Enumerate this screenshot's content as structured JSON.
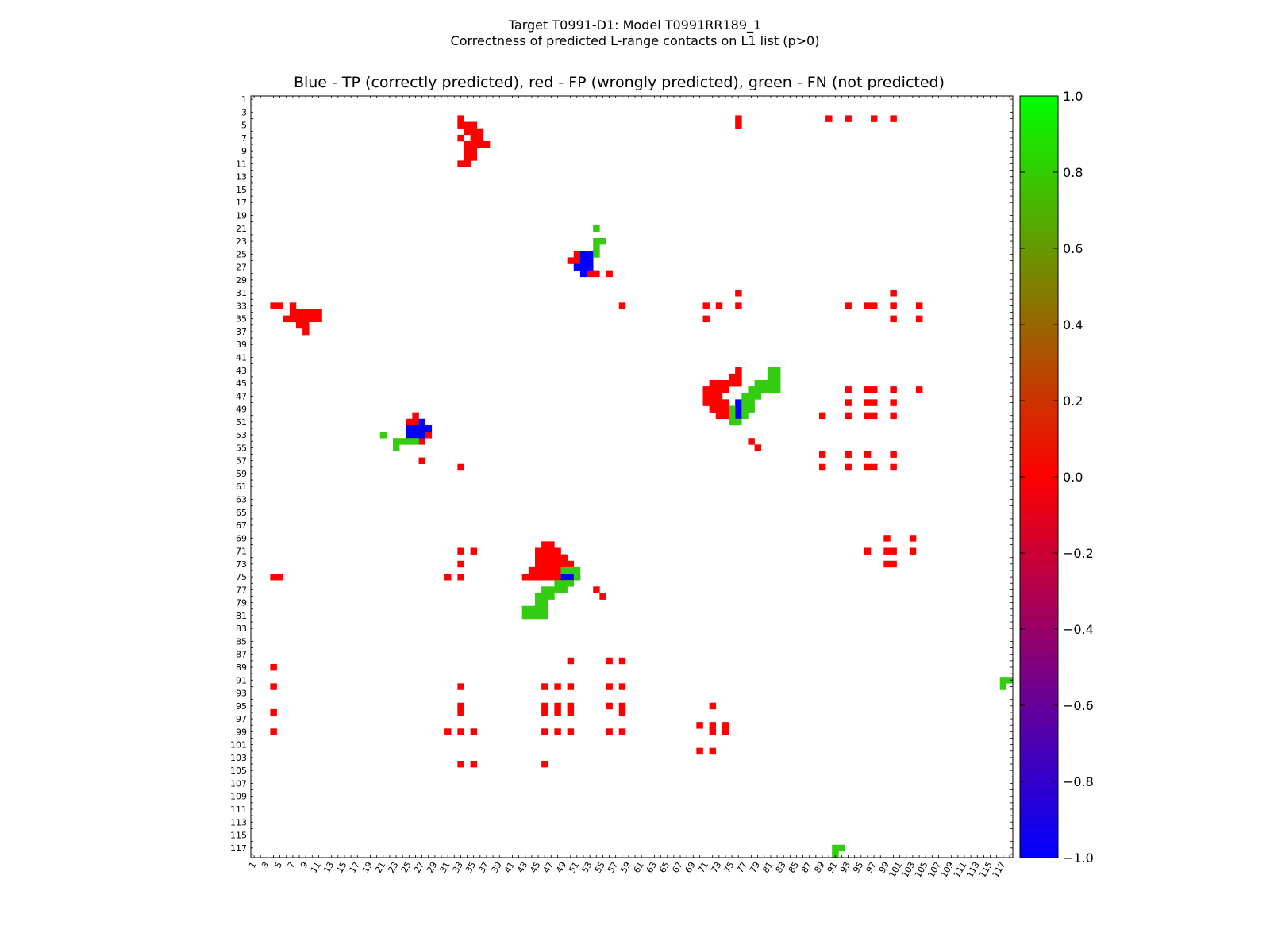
{
  "figure": {
    "title_line1": "Target T0991-D1: Model T0991RR189_1",
    "title_line2": "Correctness of predicted L-range contacts on L1 list (p>0)"
  },
  "chart_data": {
    "type": "heatmap",
    "title": "Blue - TP (correctly predicted), red - FP (wrongly predicted), green - FN (not predicted)",
    "xlabel": "",
    "ylabel": "",
    "grid": false,
    "x_range": [
      1,
      118
    ],
    "y_range": [
      1,
      118
    ],
    "x_ticks": [
      1,
      3,
      5,
      7,
      9,
      11,
      13,
      15,
      17,
      19,
      21,
      23,
      25,
      27,
      29,
      31,
      33,
      35,
      37,
      39,
      41,
      43,
      45,
      47,
      49,
      51,
      53,
      55,
      57,
      59,
      61,
      63,
      65,
      67,
      69,
      71,
      73,
      75,
      77,
      79,
      81,
      83,
      85,
      87,
      89,
      91,
      93,
      95,
      97,
      99,
      101,
      103,
      105,
      107,
      109,
      111,
      113,
      115,
      117
    ],
    "y_ticks": [
      1,
      3,
      5,
      7,
      9,
      11,
      13,
      15,
      17,
      19,
      21,
      23,
      25,
      27,
      29,
      31,
      33,
      35,
      37,
      39,
      41,
      43,
      45,
      47,
      49,
      51,
      53,
      55,
      57,
      59,
      61,
      63,
      65,
      67,
      69,
      71,
      73,
      75,
      77,
      79,
      81,
      83,
      85,
      87,
      89,
      91,
      93,
      95,
      97,
      99,
      101,
      103,
      105,
      107,
      109,
      111,
      113,
      115,
      117
    ],
    "colorbar": {
      "min": -1.0,
      "max": 1.0,
      "ticks": [
        "1.0",
        "0.8",
        "0.6",
        "0.4",
        "0.2",
        "0.0",
        "−0.2",
        "−0.4",
        "−0.6",
        "−0.8",
        "−1.0"
      ],
      "colors": {
        "min": "#0000ff",
        "mid": "#ff0000",
        "max": "#00ff00"
      },
      "location": "right"
    },
    "cell_colors": {
      "TP": "#0000ff",
      "FP": "#ff0000",
      "FN": "#33cc11"
    },
    "cells": {
      "FP": [
        [
          33,
          4
        ],
        [
          33,
          5
        ],
        [
          34,
          5
        ],
        [
          35,
          5
        ],
        [
          35,
          6
        ],
        [
          34,
          6
        ],
        [
          35,
          7
        ],
        [
          36,
          6
        ],
        [
          36,
          7
        ],
        [
          35,
          8
        ],
        [
          35,
          9
        ],
        [
          34,
          8
        ],
        [
          33,
          7
        ],
        [
          34,
          9
        ],
        [
          36,
          8
        ],
        [
          37,
          8
        ],
        [
          34,
          10
        ],
        [
          35,
          10
        ],
        [
          34,
          11
        ],
        [
          33,
          11
        ],
        [
          76,
          4
        ],
        [
          76,
          5
        ],
        [
          90,
          4
        ],
        [
          93,
          4
        ],
        [
          97,
          4
        ],
        [
          100,
          4
        ],
        [
          4,
          33
        ],
        [
          5,
          33
        ],
        [
          7,
          33
        ],
        [
          7,
          34
        ],
        [
          8,
          34
        ],
        [
          9,
          34
        ],
        [
          10,
          34
        ],
        [
          10,
          35
        ],
        [
          6,
          35
        ],
        [
          7,
          35
        ],
        [
          8,
          35
        ],
        [
          9,
          35
        ],
        [
          8,
          36
        ],
        [
          9,
          36
        ],
        [
          11,
          34
        ],
        [
          11,
          35
        ],
        [
          9,
          37
        ],
        [
          51,
          25
        ],
        [
          51,
          26
        ],
        [
          52,
          26
        ],
        [
          52,
          27
        ],
        [
          53,
          28
        ],
        [
          53,
          27
        ],
        [
          50,
          26
        ],
        [
          54,
          28
        ],
        [
          56,
          28
        ],
        [
          76,
          31
        ],
        [
          100,
          31
        ],
        [
          58,
          33
        ],
        [
          71,
          33
        ],
        [
          73,
          33
        ],
        [
          76,
          33
        ],
        [
          93,
          33
        ],
        [
          96,
          33
        ],
        [
          97,
          33
        ],
        [
          100,
          33
        ],
        [
          104,
          33
        ],
        [
          71,
          35
        ],
        [
          100,
          35
        ],
        [
          104,
          35
        ],
        [
          76,
          43
        ],
        [
          75,
          44
        ],
        [
          76,
          44
        ],
        [
          72,
          45
        ],
        [
          73,
          45
        ],
        [
          74,
          45
        ],
        [
          75,
          45
        ],
        [
          76,
          45
        ],
        [
          71,
          46
        ],
        [
          72,
          46
        ],
        [
          73,
          46
        ],
        [
          74,
          46
        ],
        [
          71,
          47
        ],
        [
          72,
          47
        ],
        [
          73,
          47
        ],
        [
          71,
          48
        ],
        [
          72,
          48
        ],
        [
          73,
          48
        ],
        [
          74,
          48
        ],
        [
          72,
          49
        ],
        [
          73,
          49
        ],
        [
          74,
          49
        ],
        [
          73,
          50
        ],
        [
          74,
          50
        ],
        [
          93,
          46
        ],
        [
          96,
          46
        ],
        [
          97,
          46
        ],
        [
          100,
          46
        ],
        [
          104,
          46
        ],
        [
          93,
          48
        ],
        [
          96,
          48
        ],
        [
          97,
          48
        ],
        [
          100,
          48
        ],
        [
          89,
          50
        ],
        [
          93,
          50
        ],
        [
          96,
          50
        ],
        [
          97,
          50
        ],
        [
          100,
          50
        ],
        [
          26,
          50
        ],
        [
          25,
          51
        ],
        [
          26,
          51
        ],
        [
          28,
          53
        ],
        [
          27,
          54
        ],
        [
          27,
          57
        ],
        [
          78,
          54
        ],
        [
          79,
          55
        ],
        [
          89,
          56
        ],
        [
          93,
          56
        ],
        [
          96,
          56
        ],
        [
          100,
          56
        ],
        [
          89,
          58
        ],
        [
          93,
          58
        ],
        [
          96,
          58
        ],
        [
          97,
          58
        ],
        [
          100,
          58
        ],
        [
          33,
          58
        ],
        [
          99,
          69
        ],
        [
          103,
          69
        ],
        [
          33,
          71
        ],
        [
          35,
          71
        ],
        [
          96,
          71
        ],
        [
          99,
          71
        ],
        [
          100,
          71
        ],
        [
          103,
          71
        ],
        [
          33,
          73
        ],
        [
          99,
          73
        ],
        [
          100,
          73
        ],
        [
          46,
          70
        ],
        [
          47,
          70
        ],
        [
          45,
          71
        ],
        [
          46,
          71
        ],
        [
          47,
          71
        ],
        [
          48,
          71
        ],
        [
          45,
          72
        ],
        [
          46,
          72
        ],
        [
          47,
          72
        ],
        [
          48,
          72
        ],
        [
          49,
          72
        ],
        [
          45,
          73
        ],
        [
          46,
          73
        ],
        [
          47,
          73
        ],
        [
          48,
          73
        ],
        [
          49,
          73
        ],
        [
          50,
          73
        ],
        [
          44,
          74
        ],
        [
          45,
          74
        ],
        [
          46,
          74
        ],
        [
          47,
          74
        ],
        [
          48,
          74
        ],
        [
          43,
          75
        ],
        [
          44,
          75
        ],
        [
          45,
          75
        ],
        [
          46,
          75
        ],
        [
          47,
          75
        ],
        [
          48,
          75
        ],
        [
          4,
          75
        ],
        [
          5,
          75
        ],
        [
          31,
          75
        ],
        [
          33,
          75
        ],
        [
          54,
          77
        ],
        [
          55,
          78
        ],
        [
          50,
          88
        ],
        [
          56,
          88
        ],
        [
          58,
          88
        ],
        [
          4,
          89
        ],
        [
          4,
          92
        ],
        [
          33,
          92
        ],
        [
          46,
          92
        ],
        [
          48,
          92
        ],
        [
          50,
          92
        ],
        [
          56,
          92
        ],
        [
          58,
          92
        ],
        [
          72,
          95
        ],
        [
          33,
          95
        ],
        [
          33,
          96
        ],
        [
          46,
          95
        ],
        [
          46,
          96
        ],
        [
          48,
          95
        ],
        [
          48,
          96
        ],
        [
          50,
          95
        ],
        [
          50,
          96
        ],
        [
          56,
          95
        ],
        [
          58,
          95
        ],
        [
          58,
          96
        ],
        [
          4,
          96
        ],
        [
          70,
          98
        ],
        [
          72,
          98
        ],
        [
          72,
          99
        ],
        [
          74,
          98
        ],
        [
          74,
          99
        ],
        [
          4,
          99
        ],
        [
          31,
          99
        ],
        [
          33,
          99
        ],
        [
          35,
          99
        ],
        [
          46,
          99
        ],
        [
          48,
          99
        ],
        [
          50,
          99
        ],
        [
          56,
          99
        ],
        [
          58,
          99
        ],
        [
          70,
          102
        ],
        [
          72,
          102
        ],
        [
          33,
          104
        ],
        [
          35,
          104
        ],
        [
          46,
          104
        ]
      ],
      "TP": [
        [
          52,
          25
        ],
        [
          53,
          25
        ],
        [
          52,
          26
        ],
        [
          53,
          26
        ],
        [
          51,
          27
        ],
        [
          52,
          27
        ],
        [
          53,
          27
        ],
        [
          52,
          28
        ],
        [
          27,
          51
        ],
        [
          25,
          52
        ],
        [
          26,
          52
        ],
        [
          27,
          52
        ],
        [
          28,
          52
        ],
        [
          25,
          53
        ],
        [
          26,
          53
        ],
        [
          27,
          53
        ],
        [
          76,
          48
        ],
        [
          76,
          49
        ],
        [
          76,
          50
        ],
        [
          49,
          75
        ],
        [
          50,
          75
        ],
        [
          51,
          75
        ]
      ],
      "FN": [
        [
          54,
          21
        ],
        [
          54,
          23
        ],
        [
          55,
          23
        ],
        [
          54,
          24
        ],
        [
          54,
          25
        ],
        [
          21,
          53
        ],
        [
          23,
          54
        ],
        [
          24,
          54
        ],
        [
          25,
          54
        ],
        [
          26,
          54
        ],
        [
          23,
          55
        ],
        [
          81,
          43
        ],
        [
          82,
          43
        ],
        [
          81,
          44
        ],
        [
          82,
          44
        ],
        [
          79,
          45
        ],
        [
          80,
          45
        ],
        [
          81,
          45
        ],
        [
          82,
          45
        ],
        [
          78,
          46
        ],
        [
          79,
          46
        ],
        [
          80,
          46
        ],
        [
          81,
          46
        ],
        [
          82,
          46
        ],
        [
          77,
          47
        ],
        [
          78,
          47
        ],
        [
          79,
          47
        ],
        [
          77,
          48
        ],
        [
          78,
          48
        ],
        [
          75,
          49
        ],
        [
          77,
          49
        ],
        [
          78,
          49
        ],
        [
          75,
          50
        ],
        [
          77,
          50
        ],
        [
          75,
          51
        ],
        [
          76,
          51
        ],
        [
          49,
          74
        ],
        [
          50,
          74
        ],
        [
          51,
          74
        ],
        [
          51,
          75
        ],
        [
          48,
          76
        ],
        [
          49,
          76
        ],
        [
          50,
          76
        ],
        [
          46,
          77
        ],
        [
          47,
          77
        ],
        [
          48,
          77
        ],
        [
          49,
          77
        ],
        [
          45,
          78
        ],
        [
          46,
          78
        ],
        [
          47,
          78
        ],
        [
          45,
          79
        ],
        [
          46,
          79
        ],
        [
          43,
          80
        ],
        [
          44,
          80
        ],
        [
          45,
          80
        ],
        [
          46,
          80
        ],
        [
          43,
          81
        ],
        [
          44,
          81
        ],
        [
          45,
          81
        ],
        [
          46,
          81
        ],
        [
          117,
          91
        ],
        [
          118,
          91
        ],
        [
          117,
          92
        ],
        [
          91,
          117
        ],
        [
          92,
          117
        ],
        [
          91,
          118
        ]
      ]
    }
  }
}
